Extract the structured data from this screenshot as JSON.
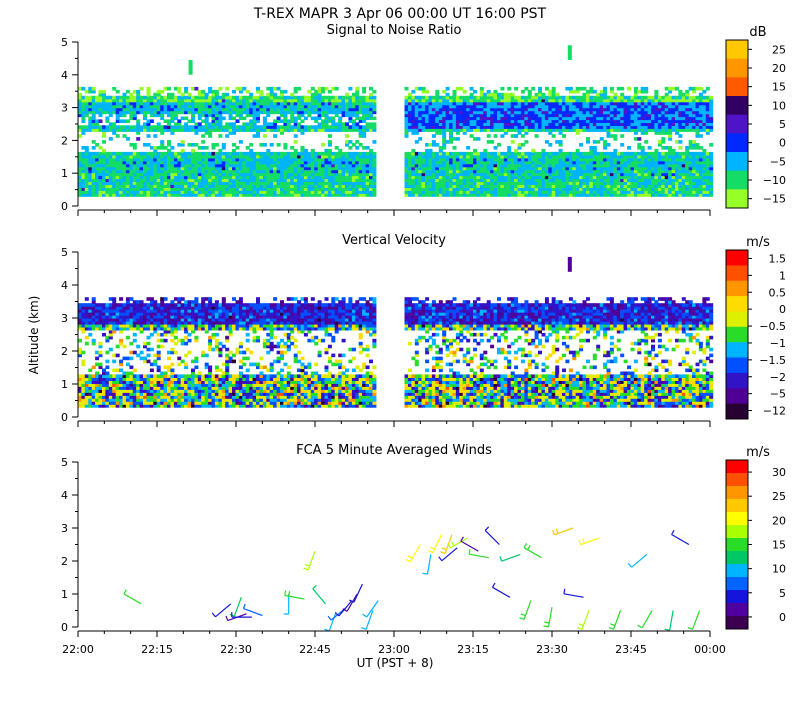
{
  "header": {
    "main_title": "T-REX   MAPR   3 Apr 06   00:00 UT   16:00   PST"
  },
  "x_axis": {
    "label": "UT  (PST + 8)",
    "tick_labels": [
      "22:00",
      "22:15",
      "22:30",
      "22:45",
      "23:00",
      "23:15",
      "23:30",
      "23:45",
      "00:00"
    ],
    "range_minutes": [
      0,
      120
    ]
  },
  "y_axis": {
    "label": "Altitude (km)",
    "tick_labels": [
      "0",
      "1",
      "2",
      "3",
      "4",
      "5"
    ],
    "range_km": [
      0,
      5
    ]
  },
  "colors": {
    "data_gap": "#ffffff",
    "background": "#ffffff"
  },
  "chart_data": [
    {
      "type": "heatmap",
      "title": "Signal to Noise Ratio",
      "units": "dB",
      "xlim": [
        0,
        120
      ],
      "ylim": [
        0,
        5
      ],
      "data_blocks_minutes": [
        [
          0,
          56
        ],
        [
          62,
          120
        ]
      ],
      "altitude_range_km": [
        0.3,
        3.6
      ],
      "colorbar": {
        "tick_labels": [
          "25",
          "20",
          "15",
          "10",
          "5",
          "0",
          "−5",
          "−10",
          "−15"
        ],
        "colors": [
          "#ffc800",
          "#ff9600",
          "#ff5a00",
          "#320064",
          "#5014c8",
          "#0028ff",
          "#00b4ff",
          "#14dc64",
          "#96ff28"
        ]
      },
      "features": [
        {
          "kind": "white_band",
          "alt_km": [
            1.6,
            2.2
          ],
          "strength": 0.8
        },
        {
          "kind": "white_band",
          "alt_km": [
            2.4,
            2.8
          ],
          "strength": 0.5
        },
        {
          "kind": "blue_band",
          "alt_km": [
            2.3,
            3.1
          ],
          "start_min": 62
        }
      ]
    },
    {
      "type": "heatmap",
      "title": "Vertical Velocity",
      "units": "m/s",
      "xlim": [
        0,
        120
      ],
      "ylim": [
        0,
        5
      ],
      "data_blocks_minutes": [
        [
          0,
          56
        ],
        [
          62,
          120
        ]
      ],
      "altitude_range_km": [
        0.3,
        3.6
      ],
      "colorbar": {
        "tick_labels": [
          "1.5",
          "1",
          "0.5",
          "0",
          "−0.5",
          "−1",
          "−1.5",
          "−2",
          "−5",
          "−12"
        ],
        "colors": [
          "#ff0000",
          "#ff5000",
          "#ff9600",
          "#ffdc00",
          "#dcf000",
          "#28dc28",
          "#00b4ff",
          "#0050ff",
          "#3214c8",
          "#500096",
          "#280032"
        ]
      },
      "features": [
        {
          "kind": "white_band",
          "alt_km": [
            1.2,
            2.6
          ],
          "strength": 0.75
        },
        {
          "kind": "purple_top",
          "alt_km": [
            2.9,
            3.5
          ]
        }
      ]
    },
    {
      "type": "wind_barbs",
      "title": "FCA 5 Minute Averaged Winds",
      "units": "m/s",
      "xlim": [
        0,
        120
      ],
      "ylim": [
        0,
        5
      ],
      "colorbar": {
        "tick_labels": [
          "30",
          "25",
          "20",
          "15",
          "10",
          "5",
          "0"
        ],
        "colors": [
          "#ff0000",
          "#ff5000",
          "#ff9600",
          "#ffc800",
          "#ffff00",
          "#aaff00",
          "#28dc28",
          "#00c864",
          "#00b4ff",
          "#0064ff",
          "#1414dc",
          "#5000a0",
          "#3c0050"
        ]
      },
      "barbs": [
        {
          "t": 12,
          "alt": 0.7,
          "speed": 14,
          "dir": 300
        },
        {
          "t": 29,
          "alt": 0.7,
          "speed": 5,
          "dir": 230
        },
        {
          "t": 31,
          "alt": 0.9,
          "speed": 12,
          "dir": 200
        },
        {
          "t": 32,
          "alt": 0.4,
          "speed": 3,
          "dir": 250
        },
        {
          "t": 33,
          "alt": 0.3,
          "speed": 6,
          "dir": 270
        },
        {
          "t": 35,
          "alt": 0.35,
          "speed": 8,
          "dir": 290
        },
        {
          "t": 40,
          "alt": 1.0,
          "speed": 9,
          "dir": 180
        },
        {
          "t": 43,
          "alt": 0.85,
          "speed": 16,
          "dir": 280
        },
        {
          "t": 45,
          "alt": 2.3,
          "speed": 18,
          "dir": 200
        },
        {
          "t": 47,
          "alt": 0.7,
          "speed": 13,
          "dir": 320
        },
        {
          "t": 49,
          "alt": 0.45,
          "speed": 11,
          "dir": 200
        },
        {
          "t": 51,
          "alt": 0.6,
          "speed": 8,
          "dir": 230
        },
        {
          "t": 52,
          "alt": 0.8,
          "speed": 5,
          "dir": 220
        },
        {
          "t": 53,
          "alt": 1.0,
          "speed": 3,
          "dir": 210
        },
        {
          "t": 54,
          "alt": 1.3,
          "speed": 4,
          "dir": 205
        },
        {
          "t": 56,
          "alt": 0.5,
          "speed": 9,
          "dir": 200
        },
        {
          "t": 57,
          "alt": 0.8,
          "speed": 10,
          "dir": 215
        },
        {
          "t": 65,
          "alt": 2.5,
          "speed": 20,
          "dir": 210
        },
        {
          "t": 67,
          "alt": 2.2,
          "speed": 11,
          "dir": 190
        },
        {
          "t": 69,
          "alt": 2.8,
          "speed": 19,
          "dir": 205
        },
        {
          "t": 71,
          "alt": 2.8,
          "speed": 22,
          "dir": 200
        },
        {
          "t": 72,
          "alt": 2.4,
          "speed": 5,
          "dir": 230
        },
        {
          "t": 74,
          "alt": 2.7,
          "speed": 17,
          "dir": 240
        },
        {
          "t": 76,
          "alt": 2.3,
          "speed": 3,
          "dir": 300
        },
        {
          "t": 78,
          "alt": 2.1,
          "speed": 14,
          "dir": 280
        },
        {
          "t": 80,
          "alt": 2.5,
          "speed": 6,
          "dir": 315
        },
        {
          "t": 82,
          "alt": 0.9,
          "speed": 4,
          "dir": 300
        },
        {
          "t": 84,
          "alt": 2.2,
          "speed": 12,
          "dir": 250
        },
        {
          "t": 86,
          "alt": 0.8,
          "speed": 15,
          "dir": 200
        },
        {
          "t": 88,
          "alt": 2.1,
          "speed": 16,
          "dir": 300
        },
        {
          "t": 90,
          "alt": 0.6,
          "speed": 16,
          "dir": 190
        },
        {
          "t": 94,
          "alt": 3.0,
          "speed": 22,
          "dir": 250
        },
        {
          "t": 96,
          "alt": 0.9,
          "speed": 5,
          "dir": 280
        },
        {
          "t": 97,
          "alt": 0.5,
          "speed": 17,
          "dir": 200
        },
        {
          "t": 99,
          "alt": 2.7,
          "speed": 21,
          "dir": 250
        },
        {
          "t": 103,
          "alt": 0.5,
          "speed": 15,
          "dir": 200
        },
        {
          "t": 108,
          "alt": 2.2,
          "speed": 10,
          "dir": 230
        },
        {
          "t": 109,
          "alt": 0.5,
          "speed": 14,
          "dir": 210
        },
        {
          "t": 113,
          "alt": 0.5,
          "speed": 12,
          "dir": 190
        },
        {
          "t": 116,
          "alt": 2.5,
          "speed": 6,
          "dir": 300
        },
        {
          "t": 118,
          "alt": 0.5,
          "speed": 14,
          "dir": 200
        }
      ]
    }
  ]
}
